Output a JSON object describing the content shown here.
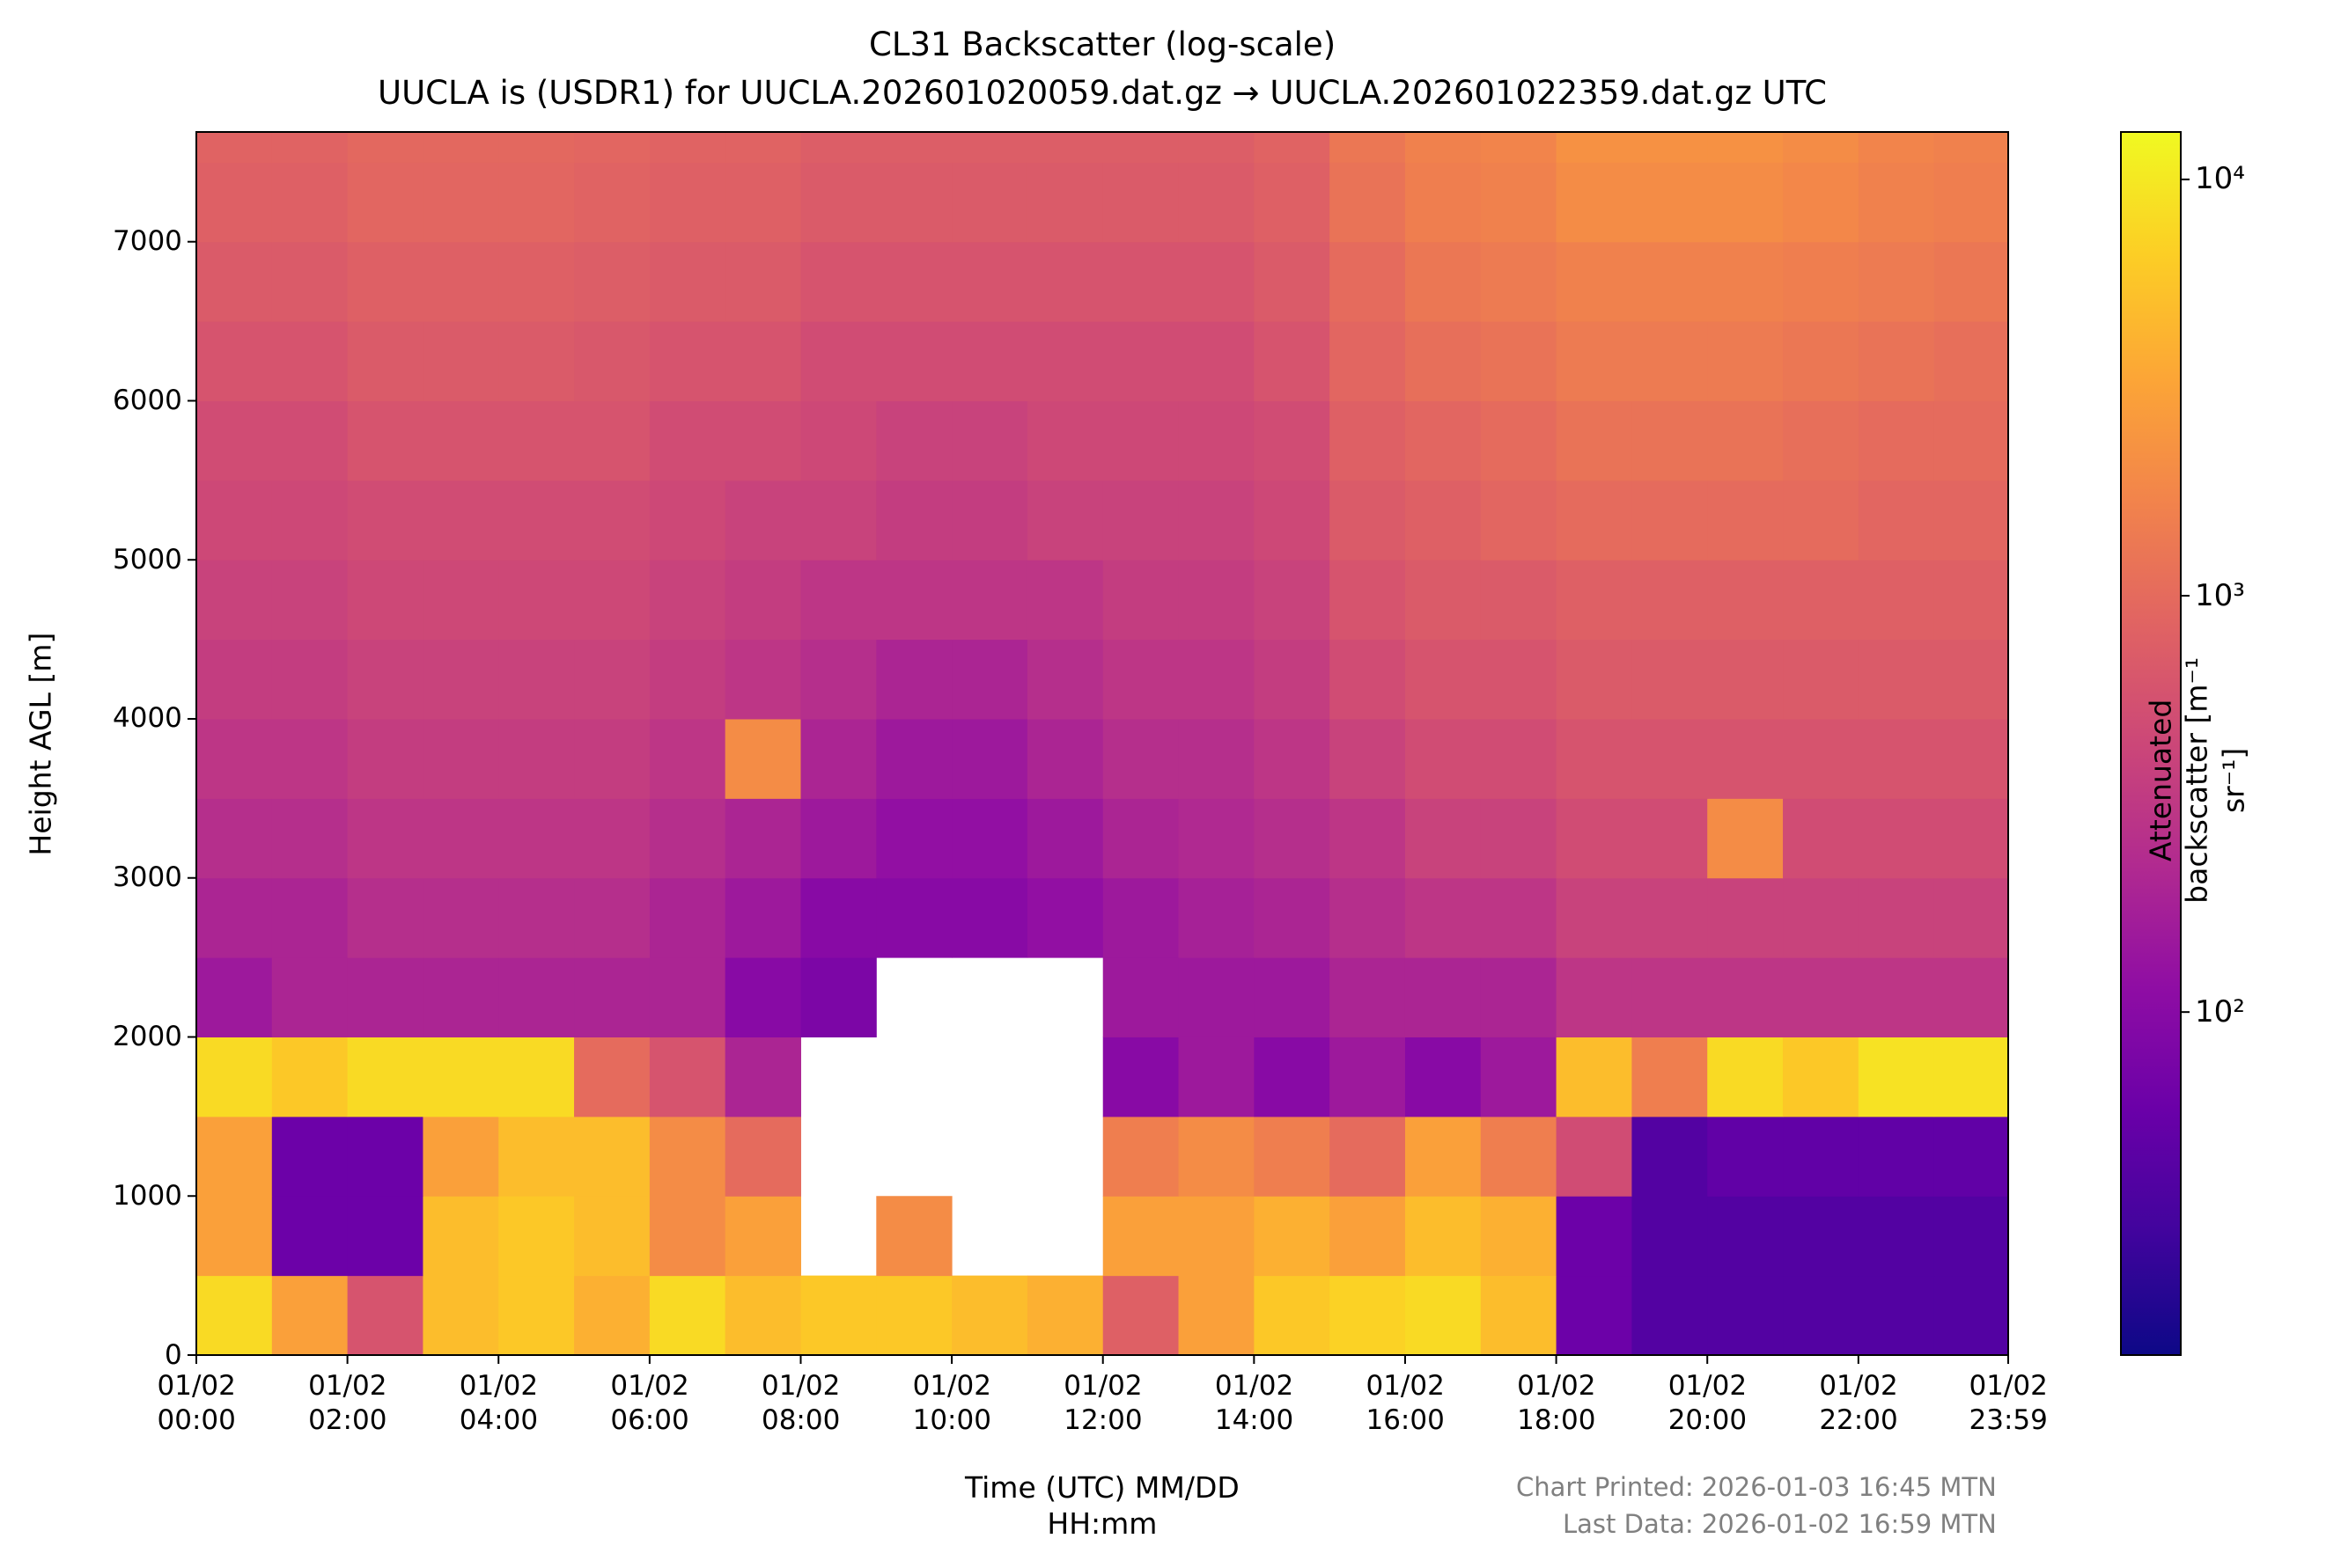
{
  "chart_data": {
    "type": "heatmap",
    "title": "CL31 Backscatter (log-scale)",
    "subtitle": "UUCLA is (USDR1) for UUCLA.202601020059.dat.gz → UUCLA.202601022359.dat.gz UTC",
    "x_label": "Time (UTC) MM/DD\nHH:mm",
    "y_label": "Height AGL [m]",
    "colorbar_label": "Attenuated backscatter [m⁻¹ sr⁻¹]",
    "annotations": [
      "Chart Printed: 2026-01-03 16:45 MTN",
      "Last Data: 2026-01-02 16:59 MTN"
    ],
    "colormap": "plasma",
    "log_scale": true,
    "xlim": [
      0,
      23.983
    ],
    "xticks": [
      {
        "value": 0,
        "label": "01/02\n00:00"
      },
      {
        "value": 2,
        "label": "01/02\n02:00"
      },
      {
        "value": 4,
        "label": "01/02\n04:00"
      },
      {
        "value": 6,
        "label": "01/02\n06:00"
      },
      {
        "value": 8,
        "label": "01/02\n08:00"
      },
      {
        "value": 10,
        "label": "01/02\n10:00"
      },
      {
        "value": 12,
        "label": "01/02\n12:00"
      },
      {
        "value": 14,
        "label": "01/02\n14:00"
      },
      {
        "value": 16,
        "label": "01/02\n16:00"
      },
      {
        "value": 18,
        "label": "01/02\n18:00"
      },
      {
        "value": 20,
        "label": "01/02\n20:00"
      },
      {
        "value": 22,
        "label": "01/02\n22:00"
      },
      {
        "value": 23.983,
        "label": "01/02\n23:59"
      }
    ],
    "ylim": [
      0,
      7690
    ],
    "yticks": [
      0,
      1000,
      2000,
      3000,
      4000,
      5000,
      6000,
      7000
    ],
    "zlim": [
      15,
      13000
    ],
    "zticks": [
      {
        "value": 100,
        "label": "10²"
      },
      {
        "value": 1000,
        "label": "10³"
      },
      {
        "value": 10000,
        "label": "10⁴"
      }
    ],
    "x": [
      0.5,
      1.5,
      2.5,
      3.5,
      4.5,
      5.5,
      6.5,
      7.5,
      8.5,
      9.5,
      10.5,
      11.5,
      12.5,
      13.5,
      14.5,
      15.5,
      16.5,
      17.5,
      18.5,
      19.5,
      20.5,
      21.5,
      22.5,
      23.5
    ],
    "y": [
      250,
      750,
      1250,
      1750,
      2250,
      2750,
      3250,
      3750,
      4250,
      4750,
      5250,
      5750,
      6250,
      6750,
      7250,
      7750
    ],
    "z": [
      [
        8000,
        3000,
        600,
        5000,
        6000,
        4000,
        8000,
        5000,
        6000,
        6000,
        5000,
        4000,
        800,
        3000,
        6000,
        7000,
        8000,
        5000,
        60,
        40,
        40,
        40,
        40,
        40
      ],
      [
        3000,
        60,
        60,
        5000,
        6000,
        5000,
        2000,
        3000,
        null,
        2000,
        null,
        null,
        3000,
        3000,
        4000,
        3000,
        5000,
        4000,
        60,
        40,
        40,
        40,
        40,
        40
      ],
      [
        3000,
        60,
        60,
        3000,
        5000,
        5000,
        2000,
        1000,
        null,
        null,
        null,
        null,
        1500,
        2000,
        1500,
        1000,
        3000,
        1500,
        500,
        40,
        50,
        50,
        50,
        50
      ],
      [
        8000,
        6000,
        8000,
        8000,
        8000,
        1000,
        600,
        200,
        null,
        null,
        null,
        null,
        100,
        150,
        100,
        150,
        100,
        150,
        5000,
        1500,
        8000,
        6000,
        9000,
        9000
      ],
      [
        150,
        200,
        200,
        200,
        200,
        200,
        200,
        100,
        80,
        null,
        null,
        null,
        150,
        150,
        150,
        200,
        200,
        200,
        300,
        300,
        300,
        300,
        300,
        300
      ],
      [
        200,
        200,
        250,
        250,
        250,
        250,
        200,
        150,
        100,
        100,
        100,
        120,
        150,
        180,
        200,
        250,
        300,
        300,
        400,
        400,
        400,
        400,
        400,
        400
      ],
      [
        250,
        250,
        300,
        300,
        300,
        300,
        250,
        200,
        150,
        120,
        120,
        150,
        200,
        220,
        250,
        300,
        400,
        400,
        500,
        500,
        2000,
        500,
        500,
        500
      ],
      [
        300,
        300,
        350,
        350,
        350,
        350,
        300,
        2000,
        200,
        150,
        150,
        200,
        250,
        250,
        300,
        400,
        500,
        500,
        600,
        600,
        600,
        600,
        600,
        600
      ],
      [
        350,
        350,
        400,
        400,
        400,
        400,
        350,
        300,
        250,
        200,
        200,
        250,
        300,
        300,
        350,
        500,
        600,
        600,
        700,
        700,
        700,
        700,
        700,
        700
      ],
      [
        400,
        400,
        450,
        450,
        450,
        450,
        400,
        350,
        300,
        300,
        300,
        300,
        350,
        350,
        400,
        600,
        700,
        700,
        800,
        800,
        800,
        800,
        800,
        800
      ],
      [
        450,
        450,
        500,
        500,
        500,
        500,
        450,
        400,
        400,
        350,
        350,
        400,
        400,
        400,
        450,
        700,
        800,
        900,
        1000,
        1000,
        1000,
        1000,
        900,
        900
      ],
      [
        500,
        500,
        600,
        600,
        600,
        600,
        500,
        500,
        450,
        400,
        400,
        450,
        450,
        450,
        500,
        800,
        900,
        1000,
        1200,
        1200,
        1200,
        1100,
        1000,
        1000
      ],
      [
        600,
        600,
        700,
        700,
        700,
        650,
        600,
        600,
        500,
        500,
        500,
        500,
        500,
        500,
        600,
        900,
        1100,
        1200,
        1400,
        1400,
        1400,
        1300,
        1200,
        1100
      ],
      [
        700,
        700,
        800,
        800,
        800,
        750,
        700,
        700,
        600,
        600,
        600,
        600,
        600,
        600,
        700,
        1000,
        1300,
        1400,
        1600,
        1600,
        1600,
        1500,
        1400,
        1300
      ],
      [
        800,
        800,
        900,
        900,
        900,
        850,
        800,
        800,
        700,
        700,
        700,
        700,
        700,
        700,
        800,
        1200,
        1500,
        1600,
        2000,
        2000,
        2000,
        1800,
        1600,
        1500
      ],
      [
        850,
        850,
        950,
        950,
        950,
        900,
        850,
        850,
        750,
        750,
        750,
        750,
        750,
        750,
        850,
        1300,
        1600,
        1700,
        2200,
        2200,
        2200,
        2000,
        1700,
        1600
      ]
    ]
  }
}
